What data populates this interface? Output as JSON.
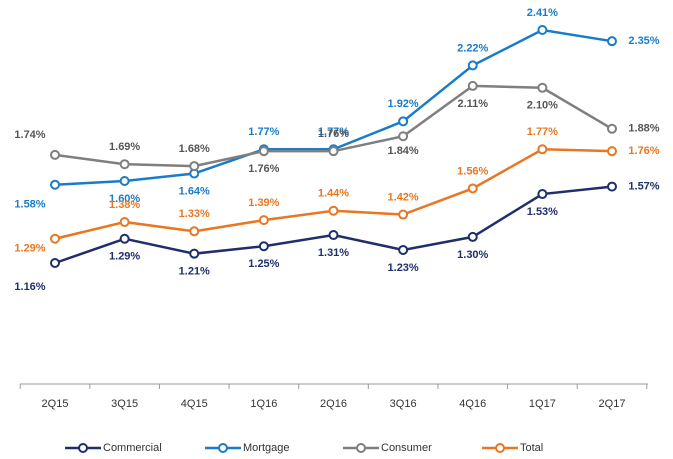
{
  "chart_data": {
    "type": "line",
    "categories": [
      "2Q15",
      "3Q15",
      "4Q15",
      "1Q16",
      "2Q16",
      "3Q16",
      "4Q16",
      "1Q17",
      "2Q17"
    ],
    "series": [
      {
        "name": "Commercial",
        "color": "#1f2f6b",
        "values": [
          1.16,
          1.29,
          1.21,
          1.25,
          1.31,
          1.23,
          1.3,
          1.53,
          1.57
        ],
        "value_labels": [
          "1.16%",
          "1.29%",
          "1.21%",
          "1.25%",
          "1.31%",
          "1.23%",
          "1.30%",
          "1.53%",
          "1.57%"
        ]
      },
      {
        "name": "Mortgage",
        "color": "#1a7cc9",
        "values": [
          1.58,
          1.6,
          1.64,
          1.77,
          1.77,
          1.92,
          2.22,
          2.41,
          2.35
        ],
        "value_labels": [
          "1.58%",
          "1.60%",
          "1.64%",
          "1.77%",
          "1.77%",
          "1.92%",
          "2.22%",
          "2.41%",
          "2.35%"
        ]
      },
      {
        "name": "Consumer",
        "color": "#7f7f7f",
        "values": [
          1.74,
          1.69,
          1.68,
          1.76,
          1.76,
          1.84,
          2.11,
          2.1,
          1.88
        ],
        "value_labels": [
          "1.74%",
          "1.69%",
          "1.68%",
          "1.76%",
          "1.76%",
          "1.84%",
          "2.11%",
          "2.10%",
          "1.88%"
        ]
      },
      {
        "name": "Total",
        "color": "#e87722",
        "values": [
          1.29,
          1.38,
          1.33,
          1.39,
          1.44,
          1.42,
          1.56,
          1.77,
          1.76
        ],
        "value_labels": [
          "1.29%",
          "1.38%",
          "1.33%",
          "1.39%",
          "1.44%",
          "1.42%",
          "1.56%",
          "1.77%",
          "1.76%"
        ]
      }
    ]
  }
}
